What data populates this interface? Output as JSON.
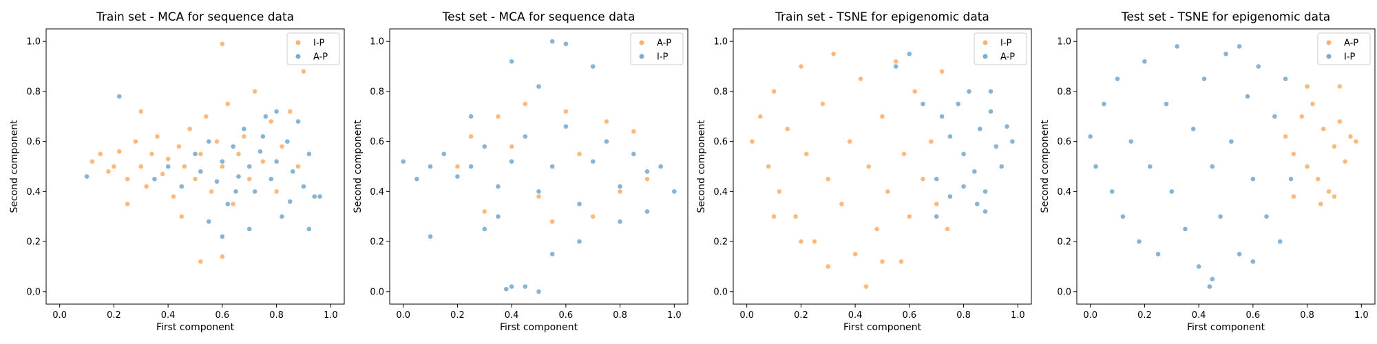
{
  "colors": {
    "orange": "#ff7f0e",
    "blue": "#1f77b4"
  },
  "chart_data": [
    {
      "type": "scatter",
      "title": "Train set - MCA for sequence data",
      "xlabel": "First component",
      "ylabel": "Second component",
      "xlim": [
        -0.05,
        1.05
      ],
      "ylim": [
        -0.05,
        1.05
      ],
      "xticks": [
        "0.0",
        "0.2",
        "0.4",
        "0.6",
        "0.8",
        "1.0"
      ],
      "yticks": [
        "0.0",
        "0.2",
        "0.4",
        "0.6",
        "0.8",
        "1.0"
      ],
      "legend_position": "top-right",
      "series": [
        {
          "name": "I-P",
          "color": "#ff7f0e",
          "points": [
            [
              0.12,
              0.52
            ],
            [
              0.15,
              0.55
            ],
            [
              0.18,
              0.48
            ],
            [
              0.2,
              0.5
            ],
            [
              0.22,
              0.56
            ],
            [
              0.25,
              0.45
            ],
            [
              0.28,
              0.6
            ],
            [
              0.3,
              0.5
            ],
            [
              0.32,
              0.42
            ],
            [
              0.34,
              0.55
            ],
            [
              0.36,
              0.62
            ],
            [
              0.38,
              0.47
            ],
            [
              0.4,
              0.53
            ],
            [
              0.42,
              0.38
            ],
            [
              0.44,
              0.58
            ],
            [
              0.46,
              0.5
            ],
            [
              0.48,
              0.65
            ],
            [
              0.5,
              0.45
            ],
            [
              0.52,
              0.55
            ],
            [
              0.54,
              0.7
            ],
            [
              0.56,
              0.4
            ],
            [
              0.58,
              0.6
            ],
            [
              0.6,
              0.5
            ],
            [
              0.62,
              0.75
            ],
            [
              0.64,
              0.35
            ],
            [
              0.66,
              0.55
            ],
            [
              0.68,
              0.62
            ],
            [
              0.7,
              0.45
            ],
            [
              0.72,
              0.8
            ],
            [
              0.75,
              0.52
            ],
            [
              0.78,
              0.68
            ],
            [
              0.8,
              0.4
            ],
            [
              0.82,
              0.58
            ],
            [
              0.85,
              0.72
            ],
            [
              0.88,
              0.5
            ],
            [
              0.9,
              0.88
            ],
            [
              0.6,
              0.99
            ],
            [
              0.52,
              0.12
            ],
            [
              0.6,
              0.14
            ],
            [
              0.3,
              0.72
            ],
            [
              0.25,
              0.35
            ],
            [
              0.45,
              0.3
            ]
          ]
        },
        {
          "name": "A-P",
          "color": "#1f77b4",
          "points": [
            [
              0.1,
              0.46
            ],
            [
              0.22,
              0.78
            ],
            [
              0.35,
              0.45
            ],
            [
              0.4,
              0.5
            ],
            [
              0.45,
              0.42
            ],
            [
              0.5,
              0.55
            ],
            [
              0.52,
              0.48
            ],
            [
              0.55,
              0.6
            ],
            [
              0.58,
              0.44
            ],
            [
              0.6,
              0.52
            ],
            [
              0.62,
              0.35
            ],
            [
              0.64,
              0.58
            ],
            [
              0.66,
              0.46
            ],
            [
              0.68,
              0.65
            ],
            [
              0.7,
              0.5
            ],
            [
              0.72,
              0.4
            ],
            [
              0.74,
              0.56
            ],
            [
              0.76,
              0.7
            ],
            [
              0.78,
              0.45
            ],
            [
              0.8,
              0.52
            ],
            [
              0.82,
              0.3
            ],
            [
              0.84,
              0.6
            ],
            [
              0.86,
              0.48
            ],
            [
              0.88,
              0.68
            ],
            [
              0.9,
              0.42
            ],
            [
              0.92,
              0.55
            ],
            [
              0.94,
              0.38
            ],
            [
              0.96,
              0.38
            ],
            [
              0.6,
              0.22
            ],
            [
              0.7,
              0.25
            ],
            [
              0.55,
              0.28
            ],
            [
              0.8,
              0.72
            ],
            [
              0.75,
              0.62
            ],
            [
              0.65,
              0.4
            ],
            [
              0.85,
              0.36
            ],
            [
              0.92,
              0.25
            ]
          ]
        }
      ]
    },
    {
      "type": "scatter",
      "title": "Test set - MCA for sequence data",
      "xlabel": "First component",
      "ylabel": "Second component",
      "xlim": [
        -0.05,
        1.05
      ],
      "ylim": [
        -0.05,
        1.05
      ],
      "xticks": [
        "0.0",
        "0.2",
        "0.4",
        "0.6",
        "0.8",
        "1.0"
      ],
      "yticks": [
        "0.0",
        "0.2",
        "0.4",
        "0.6",
        "0.8",
        "1.0"
      ],
      "legend_position": "top-right",
      "series": [
        {
          "name": "A-P",
          "color": "#ff7f0e",
          "points": [
            [
              0.35,
              0.7
            ],
            [
              0.45,
              0.75
            ],
            [
              0.6,
              0.72
            ],
            [
              0.75,
              0.68
            ],
            [
              0.85,
              0.64
            ],
            [
              0.3,
              0.32
            ],
            [
              0.55,
              0.28
            ],
            [
              0.7,
              0.3
            ],
            [
              0.9,
              0.45
            ],
            [
              0.2,
              0.5
            ],
            [
              0.4,
              0.58
            ],
            [
              0.65,
              0.55
            ],
            [
              0.8,
              0.4
            ],
            [
              0.5,
              0.38
            ],
            [
              0.25,
              0.62
            ]
          ]
        },
        {
          "name": "I-P",
          "color": "#1f77b4",
          "points": [
            [
              0.0,
              0.52
            ],
            [
              0.05,
              0.45
            ],
            [
              0.1,
              0.5
            ],
            [
              0.15,
              0.55
            ],
            [
              0.2,
              0.46
            ],
            [
              0.25,
              0.5
            ],
            [
              0.3,
              0.58
            ],
            [
              0.35,
              0.42
            ],
            [
              0.4,
              0.52
            ],
            [
              0.45,
              0.62
            ],
            [
              0.5,
              0.4
            ],
            [
              0.55,
              0.5
            ],
            [
              0.6,
              0.66
            ],
            [
              0.65,
              0.35
            ],
            [
              0.7,
              0.52
            ],
            [
              0.75,
              0.6
            ],
            [
              0.8,
              0.42
            ],
            [
              0.85,
              0.55
            ],
            [
              0.9,
              0.48
            ],
            [
              0.95,
              0.5
            ],
            [
              1.0,
              0.4
            ],
            [
              0.6,
              0.99
            ],
            [
              0.55,
              1.0
            ],
            [
              0.4,
              0.92
            ],
            [
              0.5,
              0.82
            ],
            [
              0.7,
              0.9
            ],
            [
              0.4,
              0.02
            ],
            [
              0.45,
              0.02
            ],
            [
              0.5,
              0.0
            ],
            [
              0.38,
              0.01
            ],
            [
              0.1,
              0.22
            ],
            [
              0.3,
              0.25
            ],
            [
              0.65,
              0.2
            ],
            [
              0.55,
              0.15
            ],
            [
              0.8,
              0.28
            ],
            [
              0.9,
              0.32
            ],
            [
              0.25,
              0.7
            ],
            [
              0.35,
              0.3
            ]
          ]
        }
      ]
    },
    {
      "type": "scatter",
      "title": "Train set - TSNE for epigenomic data",
      "xlabel": "First component",
      "ylabel": "Second component",
      "xlim": [
        -0.05,
        1.05
      ],
      "ylim": [
        -0.05,
        1.05
      ],
      "xticks": [
        "0.0",
        "0.2",
        "0.4",
        "0.6",
        "0.8",
        "1.0"
      ],
      "yticks": [
        "0.0",
        "0.2",
        "0.4",
        "0.6",
        "0.8",
        "1.0"
      ],
      "legend_position": "top-right",
      "series": [
        {
          "name": "I-P",
          "color": "#ff7f0e",
          "points": [
            [
              0.02,
              0.6
            ],
            [
              0.05,
              0.7
            ],
            [
              0.08,
              0.5
            ],
            [
              0.1,
              0.8
            ],
            [
              0.12,
              0.4
            ],
            [
              0.15,
              0.65
            ],
            [
              0.18,
              0.3
            ],
            [
              0.2,
              0.9
            ],
            [
              0.22,
              0.55
            ],
            [
              0.25,
              0.2
            ],
            [
              0.28,
              0.75
            ],
            [
              0.3,
              0.45
            ],
            [
              0.32,
              0.95
            ],
            [
              0.35,
              0.35
            ],
            [
              0.38,
              0.6
            ],
            [
              0.4,
              0.15
            ],
            [
              0.42,
              0.85
            ],
            [
              0.44,
              0.02
            ],
            [
              0.45,
              0.5
            ],
            [
              0.48,
              0.25
            ],
            [
              0.5,
              0.7
            ],
            [
              0.52,
              0.4
            ],
            [
              0.55,
              0.92
            ],
            [
              0.58,
              0.55
            ],
            [
              0.6,
              0.3
            ],
            [
              0.62,
              0.8
            ],
            [
              0.65,
              0.45
            ],
            [
              0.68,
              0.6
            ],
            [
              0.7,
              0.35
            ],
            [
              0.72,
              0.88
            ],
            [
              0.74,
              0.25
            ],
            [
              0.3,
              0.1
            ],
            [
              0.2,
              0.2
            ],
            [
              0.1,
              0.3
            ],
            [
              0.5,
              0.12
            ],
            [
              0.57,
              0.12
            ]
          ]
        },
        {
          "name": "A-P",
          "color": "#1f77b4",
          "points": [
            [
              0.72,
              0.7
            ],
            [
              0.75,
              0.62
            ],
            [
              0.78,
              0.75
            ],
            [
              0.8,
              0.55
            ],
            [
              0.82,
              0.8
            ],
            [
              0.84,
              0.48
            ],
            [
              0.86,
              0.65
            ],
            [
              0.88,
              0.4
            ],
            [
              0.9,
              0.72
            ],
            [
              0.92,
              0.58
            ],
            [
              0.94,
              0.5
            ],
            [
              0.96,
              0.66
            ],
            [
              0.98,
              0.6
            ],
            [
              0.85,
              0.35
            ],
            [
              0.88,
              0.32
            ],
            [
              0.8,
              0.42
            ],
            [
              0.7,
              0.45
            ],
            [
              0.75,
              0.38
            ],
            [
              0.9,
              0.8
            ],
            [
              0.6,
              0.95
            ],
            [
              0.55,
              0.9
            ],
            [
              0.65,
              0.75
            ],
            [
              0.7,
              0.3
            ]
          ]
        }
      ]
    },
    {
      "type": "scatter",
      "title": "Test set - TSNE for epigenomic data",
      "xlabel": "First component",
      "ylabel": "Second component",
      "xlim": [
        -0.05,
        1.05
      ],
      "ylim": [
        -0.05,
        1.05
      ],
      "xticks": [
        "0.0",
        "0.2",
        "0.4",
        "0.6",
        "0.8",
        "1.0"
      ],
      "yticks": [
        "0.0",
        "0.2",
        "0.4",
        "0.6",
        "0.8",
        "1.0"
      ],
      "legend_position": "top-right",
      "series": [
        {
          "name": "A-P",
          "color": "#ff7f0e",
          "points": [
            [
              0.72,
              0.62
            ],
            [
              0.75,
              0.55
            ],
            [
              0.78,
              0.7
            ],
            [
              0.8,
              0.5
            ],
            [
              0.82,
              0.75
            ],
            [
              0.84,
              0.45
            ],
            [
              0.86,
              0.65
            ],
            [
              0.88,
              0.4
            ],
            [
              0.9,
              0.58
            ],
            [
              0.92,
              0.68
            ],
            [
              0.94,
              0.52
            ],
            [
              0.96,
              0.62
            ],
            [
              0.98,
              0.6
            ],
            [
              0.85,
              0.35
            ],
            [
              0.9,
              0.38
            ],
            [
              0.75,
              0.38
            ],
            [
              0.8,
              0.82
            ],
            [
              0.92,
              0.82
            ]
          ]
        },
        {
          "name": "I-P",
          "color": "#1f77b4",
          "points": [
            [
              0.0,
              0.62
            ],
            [
              0.02,
              0.5
            ],
            [
              0.05,
              0.75
            ],
            [
              0.08,
              0.4
            ],
            [
              0.1,
              0.85
            ],
            [
              0.12,
              0.3
            ],
            [
              0.15,
              0.6
            ],
            [
              0.18,
              0.2
            ],
            [
              0.2,
              0.92
            ],
            [
              0.22,
              0.5
            ],
            [
              0.25,
              0.15
            ],
            [
              0.28,
              0.75
            ],
            [
              0.3,
              0.4
            ],
            [
              0.32,
              0.98
            ],
            [
              0.35,
              0.25
            ],
            [
              0.38,
              0.65
            ],
            [
              0.4,
              0.1
            ],
            [
              0.42,
              0.85
            ],
            [
              0.44,
              0.02
            ],
            [
              0.45,
              0.5
            ],
            [
              0.48,
              0.3
            ],
            [
              0.5,
              0.95
            ],
            [
              0.52,
              0.6
            ],
            [
              0.55,
              0.15
            ],
            [
              0.58,
              0.78
            ],
            [
              0.6,
              0.45
            ],
            [
              0.62,
              0.9
            ],
            [
              0.65,
              0.3
            ],
            [
              0.68,
              0.7
            ],
            [
              0.7,
              0.2
            ],
            [
              0.72,
              0.85
            ],
            [
              0.74,
              0.45
            ],
            [
              0.45,
              0.05
            ],
            [
              0.55,
              0.98
            ],
            [
              0.6,
              0.12
            ]
          ]
        }
      ]
    }
  ]
}
